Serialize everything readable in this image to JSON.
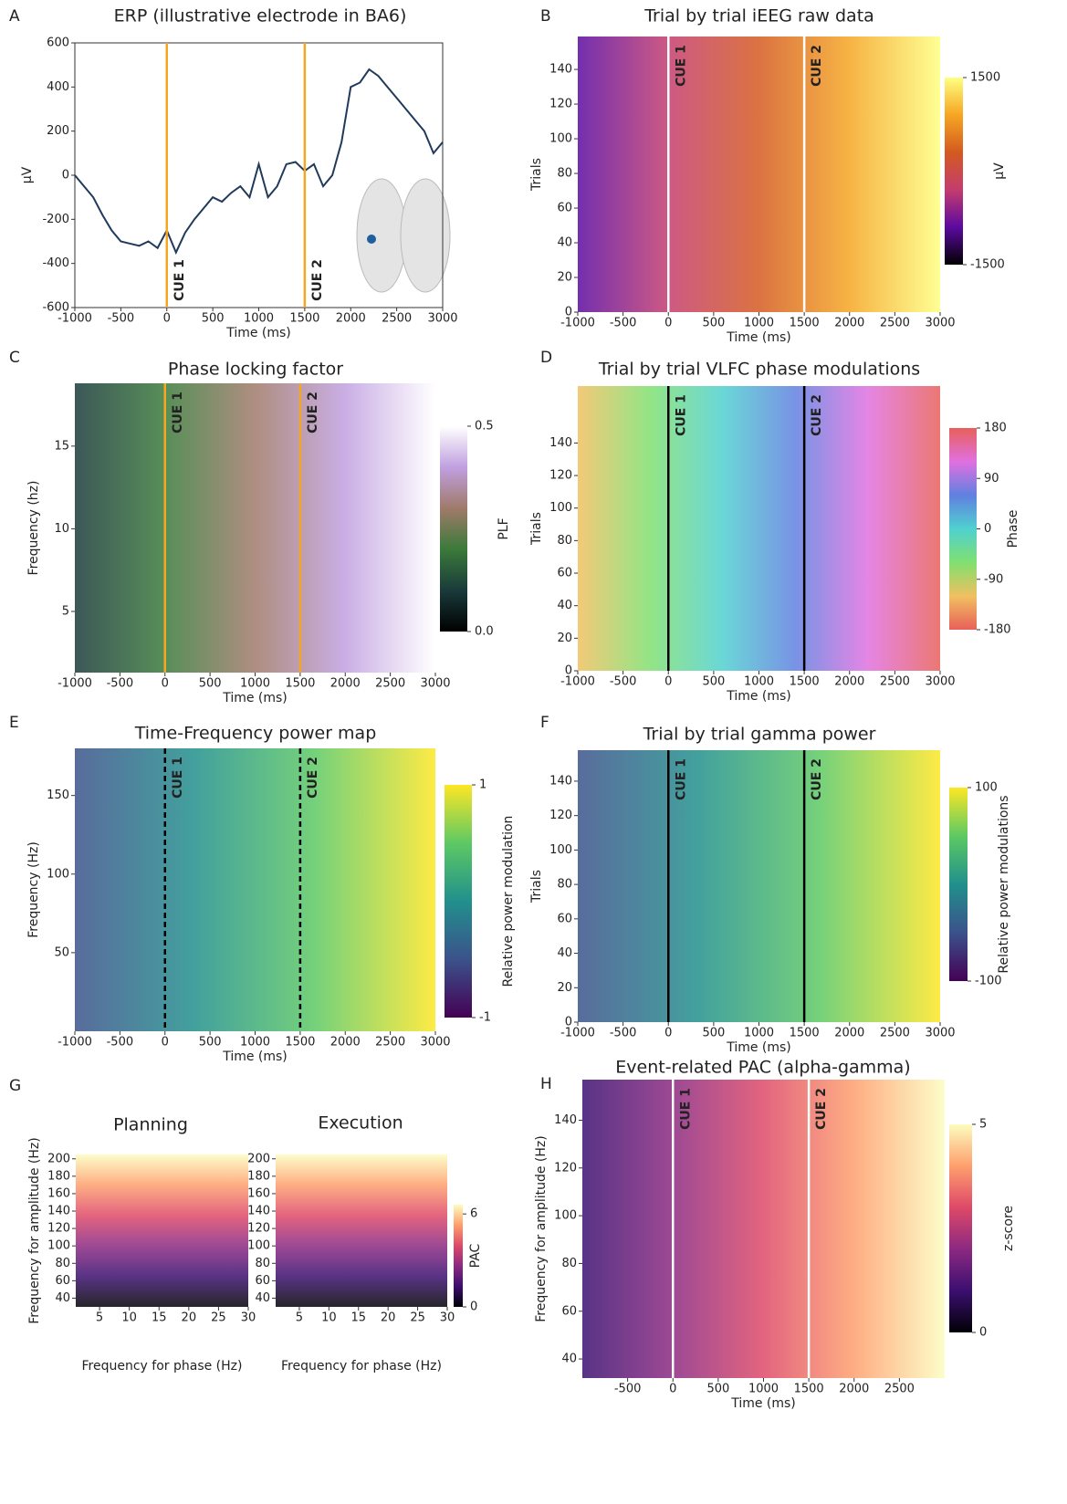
{
  "chart_data": [
    {
      "panel": "A",
      "type": "line",
      "title": "ERP (illustrative electrode in BA6)",
      "xlabel": "Time (ms)",
      "ylabel": "µV",
      "color": "#1f3a5a",
      "x": [
        -1000,
        -900,
        -800,
        -700,
        -600,
        -500,
        -400,
        -300,
        -200,
        -100,
        0,
        100,
        200,
        300,
        400,
        500,
        600,
        700,
        800,
        900,
        1000,
        1100,
        1200,
        1300,
        1400,
        1500,
        1600,
        1700,
        1800,
        1900,
        2000,
        2100,
        2200,
        2300,
        2400,
        2500,
        2600,
        2700,
        2800,
        2900,
        3000
      ],
      "values": [
        0,
        -50,
        -100,
        -180,
        -250,
        -300,
        -310,
        -320,
        -300,
        -330,
        -250,
        -350,
        -260,
        -200,
        -150,
        -100,
        -120,
        -80,
        -50,
        -100,
        50,
        -100,
        -50,
        50,
        60,
        20,
        50,
        -50,
        0,
        150,
        400,
        420,
        480,
        450,
        400,
        350,
        300,
        250,
        200,
        100,
        150
      ],
      "xlim": [
        -1000,
        3000
      ],
      "ylim": [
        -600,
        600
      ],
      "xticks": [
        -1000,
        -500,
        0,
        500,
        1000,
        1500,
        2000,
        2500,
        3000
      ],
      "yticks": [
        -600,
        -400,
        -200,
        0,
        200,
        400,
        600
      ],
      "cues": [
        {
          "label": "CUE 1",
          "x": 0
        },
        {
          "label": "CUE 2",
          "x": 1500
        }
      ],
      "cue_color": "#f5a623",
      "cue_label_color": "#000000"
    },
    {
      "panel": "B",
      "type": "heatmap",
      "title": "Trial by trial iEEG raw data",
      "xlabel": "Time (ms)",
      "ylabel": "Trials",
      "xlim": [
        -1000,
        3000
      ],
      "ylim": [
        0,
        159
      ],
      "xticks": [
        -1000,
        -500,
        0,
        500,
        1000,
        1500,
        2000,
        2500,
        3000
      ],
      "yticks": [
        0,
        20,
        40,
        60,
        80,
        100,
        120,
        140
      ],
      "cues": [
        {
          "label": "CUE 1",
          "x": 0
        },
        {
          "label": "CUE 2",
          "x": 1500
        }
      ],
      "cue_color": "#ffffff",
      "cue_label_color": "#ffffff",
      "colorbar": {
        "label": "µV",
        "lim": [
          -1500,
          1500
        ],
        "ticks": [
          -1500,
          1500
        ],
        "colors": [
          "#000000",
          "#5b0aa0",
          "#c43c6e",
          "#d45a20",
          "#f5a623",
          "#ffff80"
        ]
      }
    },
    {
      "panel": "C",
      "type": "heatmap",
      "title": "Phase locking factor",
      "xlabel": "Time (ms)",
      "ylabel": "Frequency (hz)",
      "xlim": [
        -1000,
        3000
      ],
      "ylim": [
        1.3,
        18.8
      ],
      "xticks": [
        -1000,
        -500,
        0,
        500,
        1000,
        1500,
        2000,
        2500,
        3000
      ],
      "yticks": [
        5,
        10,
        15
      ],
      "cues": [
        {
          "label": "CUE 1",
          "x": 0
        },
        {
          "label": "CUE 2",
          "x": 1500
        }
      ],
      "cue_color": "#f5a623",
      "cue_label_color": "#ffffff",
      "colorbar": {
        "label": "PLF",
        "lim": [
          0,
          0.5
        ],
        "ticks": [
          {
            "value": 0,
            "label": "0.0"
          },
          {
            "value": 0.5,
            "label": "0.5"
          }
        ],
        "colors": [
          "#000000",
          "#1a3a3a",
          "#3a7a3a",
          "#a07a6a",
          "#c0a0e0",
          "#ffffff"
        ]
      }
    },
    {
      "panel": "D",
      "type": "heatmap",
      "title": "Trial by trial VLFC phase modulations",
      "xlabel": "Time (ms)",
      "ylabel": "Trials",
      "xlim": [
        -1000,
        3000
      ],
      "ylim": [
        0,
        175
      ],
      "xticks": [
        -1000,
        -500,
        0,
        500,
        1000,
        1500,
        2000,
        2500,
        3000
      ],
      "yticks": [
        0,
        20,
        40,
        60,
        80,
        100,
        120,
        140
      ],
      "cues": [
        {
          "label": "CUE 1",
          "x": 0
        },
        {
          "label": "CUE 2",
          "x": 1500
        }
      ],
      "cue_color": "#000000",
      "cue_label_color": "#000000",
      "colorbar": {
        "label": "Phase",
        "lim": [
          -180,
          180
        ],
        "ticks": [
          -180,
          -90,
          0,
          90,
          180
        ],
        "colors": [
          "#e8605a",
          "#f0c060",
          "#80e070",
          "#50d0d0",
          "#6080e0",
          "#e070e0",
          "#e8605a"
        ]
      }
    },
    {
      "panel": "E",
      "type": "heatmap",
      "title": "Time-Frequency power map",
      "xlabel": "Time (ms)",
      "ylabel": "Frequency (Hz)",
      "xlim": [
        -1000,
        3000
      ],
      "ylim": [
        0,
        180
      ],
      "xticks": [
        -1000,
        -500,
        0,
        500,
        1000,
        1500,
        2000,
        2500,
        3000
      ],
      "yticks": [
        50,
        100,
        150
      ],
      "cues": [
        {
          "label": "CUE 1",
          "x": 0
        },
        {
          "label": "CUE 2",
          "x": 1500
        }
      ],
      "cue_color": "#000000",
      "cue_dashed": true,
      "cue_label_color": "#ffffff",
      "colorbar": {
        "label": "Relative power modulation",
        "lim": [
          -1,
          1
        ],
        "ticks": [
          -1,
          1
        ],
        "colors": [
          "#440154",
          "#3b528b",
          "#21908c",
          "#5dc963",
          "#fde725"
        ]
      }
    },
    {
      "panel": "F",
      "type": "heatmap",
      "title": "Trial by trial gamma power",
      "xlabel": "Time (ms)",
      "ylabel": "Trials",
      "xlim": [
        -1000,
        3000
      ],
      "ylim": [
        0,
        158
      ],
      "xticks": [
        -1000,
        -500,
        0,
        500,
        1000,
        1500,
        2000,
        2500,
        3000
      ],
      "yticks": [
        0,
        20,
        40,
        60,
        80,
        100,
        120,
        140
      ],
      "cues": [
        {
          "label": "CUE 1",
          "x": 0
        },
        {
          "label": "CUE 2",
          "x": 1500
        }
      ],
      "cue_color": "#000000",
      "cue_label_color": "#ffffff",
      "colorbar": {
        "label": "Relative power modulations",
        "lim": [
          -100,
          100
        ],
        "ticks": [
          -100,
          100
        ],
        "colors": [
          "#440154",
          "#3b528b",
          "#21908c",
          "#5dc963",
          "#fde725"
        ]
      }
    },
    {
      "panel": "G",
      "type": "heatmap",
      "ylabel": "Frequency for amplitude (Hz)",
      "subplots": [
        {
          "title": "Planning",
          "xlabel": "Frequency for phase (Hz)"
        },
        {
          "title": "Execution",
          "xlabel": "Frequency for phase (Hz)"
        }
      ],
      "xlim": [
        1,
        30
      ],
      "ylim": [
        30,
        205
      ],
      "xticks": [
        5,
        10,
        15,
        20,
        25,
        30
      ],
      "yticks": [
        40,
        60,
        80,
        100,
        120,
        140,
        160,
        180,
        200
      ],
      "colorbar": {
        "label": "PAC",
        "lim": [
          0,
          6.6
        ],
        "ticks": [
          0,
          6
        ],
        "colors": [
          "#000004",
          "#3b0f70",
          "#8c2981",
          "#de4968",
          "#fe9f6d",
          "#fcfdbf"
        ]
      }
    },
    {
      "panel": "H",
      "type": "heatmap",
      "title": "Event-related PAC (alpha-gamma)",
      "xlabel": "Time (ms)",
      "ylabel": "Frequency for amplitude (Hz)",
      "xlim": [
        -1000,
        3000
      ],
      "ylim": [
        32,
        157
      ],
      "xticks": [
        -500,
        0,
        500,
        1000,
        1500,
        2000,
        2500
      ],
      "yticks": [
        40,
        60,
        80,
        100,
        120,
        140
      ],
      "cues": [
        {
          "label": "CUE 1",
          "x": 0
        },
        {
          "label": "CUE 2",
          "x": 1500
        }
      ],
      "cue_color": "#ffffff",
      "cue_label_color": "#ffffff",
      "colorbar": {
        "label": "z-score",
        "lim": [
          0,
          5
        ],
        "ticks": [
          0,
          5
        ],
        "colors": [
          "#000004",
          "#3b0f70",
          "#8c2981",
          "#de4968",
          "#fe9f6d",
          "#fcfdbf"
        ]
      }
    }
  ]
}
